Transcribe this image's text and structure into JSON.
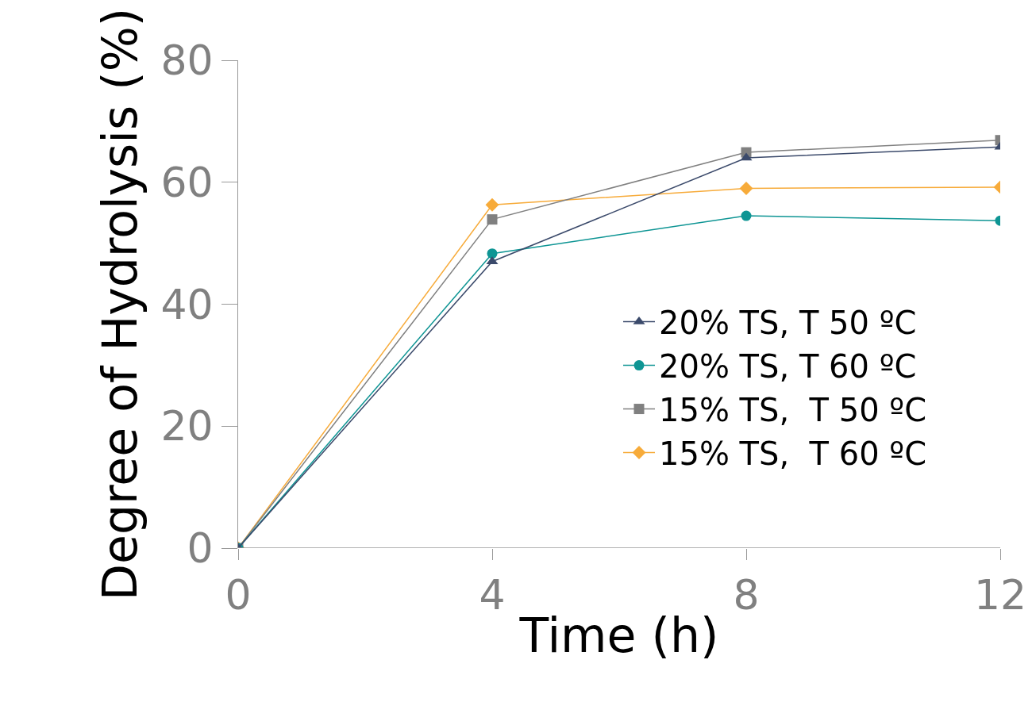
{
  "chart_data": {
    "type": "line",
    "xlabel": "Time (h)",
    "ylabel": "Degree of Hydrolysis (%)",
    "x": [
      0,
      4,
      8,
      12
    ],
    "xlim": [
      0,
      12
    ],
    "xticks": [
      0,
      4,
      8,
      12
    ],
    "ylim": [
      0,
      80
    ],
    "yticks": [
      0,
      20,
      40,
      60,
      80
    ],
    "grid": false,
    "legend": "right",
    "series": [
      {
        "name": "20% TS, T 50 ºC",
        "color": "#3b4a6b",
        "marker": "triangle",
        "values": [
          0,
          47,
          64,
          65.8
        ]
      },
      {
        "name": "20% TS, T 60 ºC",
        "color": "#0e9594",
        "marker": "circle",
        "values": [
          0,
          48.3,
          54.5,
          53.7
        ]
      },
      {
        "name": "15% TS,  T 50 ºC",
        "color": "#808080",
        "marker": "square",
        "values": [
          0,
          53.9,
          64.9,
          66.9
        ]
      },
      {
        "name": "15% TS,  T 60 ºC",
        "color": "#f7ab3a",
        "marker": "diamond",
        "values": [
          0,
          56.3,
          59,
          59.2
        ]
      }
    ]
  }
}
